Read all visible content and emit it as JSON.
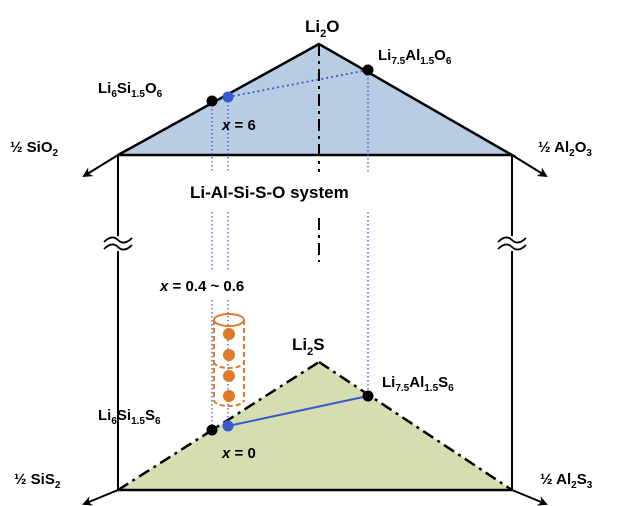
{
  "colors": {
    "top_face": "#b8cce4",
    "bottom_face": "#d6deb0",
    "tie_line": "#3a5bd0",
    "dotted_projection": "#3a5bd0",
    "cylinder": "#e07a28",
    "edge": "#000000"
  },
  "labels": {
    "li2o": {
      "base": "Li",
      "sub": "2",
      "tail": "O"
    },
    "li2s": {
      "base": "Li",
      "sub": "2",
      "tail": "S"
    },
    "sio2": {
      "base": "½ SiO",
      "sub": "2"
    },
    "al2o3": {
      "base": "½ Al",
      "sub": "2",
      "mid": "O",
      "sub2": "3"
    },
    "sis2": {
      "base": "½ SiS",
      "sub": "2"
    },
    "al2s3": {
      "base": "½ Al",
      "sub": "2",
      "mid": "S",
      "sub2": "3"
    },
    "li6si15o6": {
      "p1": "Li",
      "s1": "6",
      "p2": "Si",
      "s2": "1.5",
      "p3": "O",
      "s3": "6"
    },
    "li75al15o6": {
      "p1": "Li",
      "s1": "7.5",
      "p2": "Al",
      "s2": "1.5",
      "p3": "O",
      "s3": "6"
    },
    "li6si15s6": {
      "p1": "Li",
      "s1": "6",
      "p2": "Si",
      "s2": "1.5",
      "p3": "S",
      "s3": "6"
    },
    "li75al15s6": {
      "p1": "Li",
      "s1": "7.5",
      "p2": "Al",
      "s2": "1.5",
      "p3": "S",
      "s3": "6"
    },
    "system": "Li-Al-Si-S-O system",
    "x_top": {
      "var": "x",
      "rest": " = 6"
    },
    "x_mid": {
      "var": "x",
      "rest": " = 0.4 ~ 0.6"
    },
    "x_bottom": {
      "var": "x",
      "rest": " = 0"
    }
  }
}
